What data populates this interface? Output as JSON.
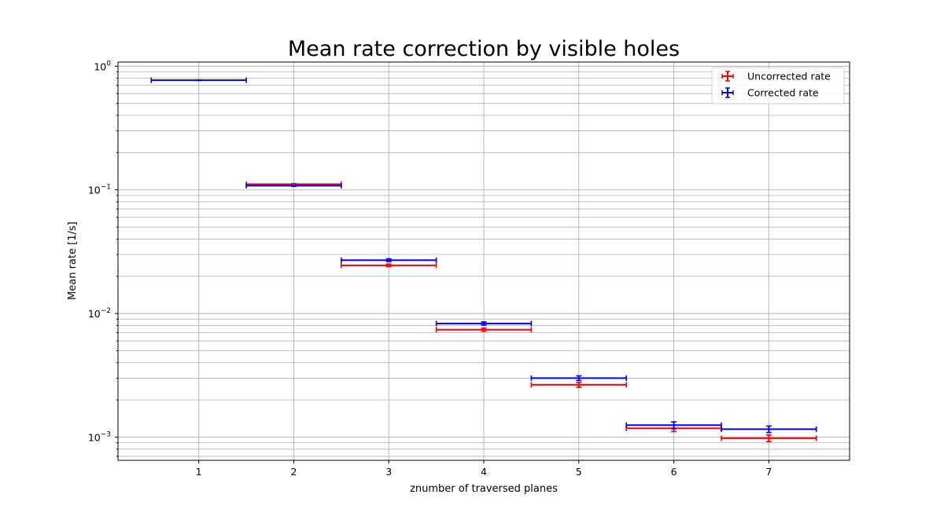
{
  "chart_data": {
    "type": "errorbar",
    "title": "Mean rate correction by visible holes",
    "xlabel": "znumber of traversed planes",
    "ylabel": "Mean rate [1/s]",
    "yscale": "log",
    "xlim": [
      0.15,
      7.85
    ],
    "ylim": [
      0.00065,
      1.08
    ],
    "x_ticks": [
      1,
      2,
      3,
      4,
      5,
      6,
      7
    ],
    "x_tick_labels": [
      "1",
      "2",
      "3",
      "4",
      "5",
      "6",
      "7"
    ],
    "y_ticks": [
      0.001,
      0.01,
      0.1,
      1
    ],
    "y_tick_labels": [
      {
        "base": "10",
        "exp": "−3"
      },
      {
        "base": "10",
        "exp": "−2"
      },
      {
        "base": "10",
        "exp": "−1"
      },
      {
        "base": "10",
        "exp": "0"
      }
    ],
    "grid": true,
    "legend_position": "upper right",
    "series": [
      {
        "name": "Uncorrected rate",
        "color": "#ff0000",
        "x": [
          2,
          3,
          4,
          5,
          6,
          7
        ],
        "y": [
          0.111,
          0.0245,
          0.0074,
          0.00265,
          0.00118,
          0.00098
        ],
        "xerr": [
          0.5,
          0.5,
          0.5,
          0.5,
          0.5,
          0.5
        ],
        "yerr": [
          0.0012,
          0.0006,
          0.00022,
          0.00012,
          7e-05,
          6e-05
        ]
      },
      {
        "name": "Corrected rate",
        "color": "#0000ff",
        "x": [
          1,
          2,
          3,
          4,
          5,
          6,
          7
        ],
        "y": [
          0.77,
          0.108,
          0.027,
          0.0083,
          0.003,
          0.00125,
          0.00116
        ],
        "xerr": [
          0.5,
          0.5,
          0.5,
          0.5,
          0.5,
          0.5,
          0.5
        ],
        "yerr": [
          0.004,
          0.0012,
          0.0007,
          0.00025,
          0.00013,
          8e-05,
          7e-05
        ]
      }
    ]
  }
}
